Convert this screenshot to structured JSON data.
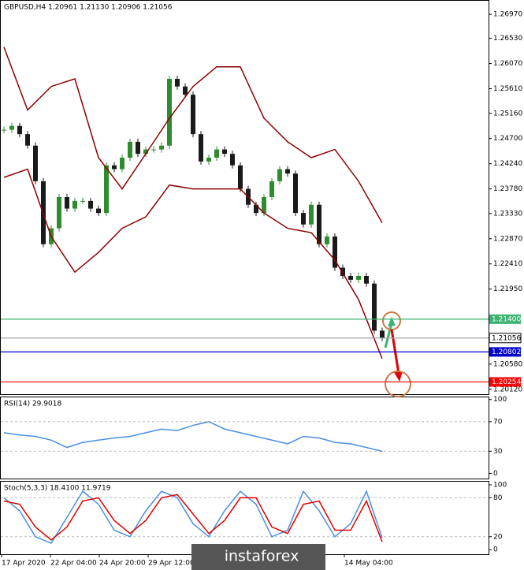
{
  "chart_data": [
    {
      "type": "candlestick",
      "title": "GBPUSD,H4  1.20961 1.21130 1.20906 1.21056",
      "closes": [
        1.2486,
        1.2493,
        1.2478,
        1.2457,
        1.2392,
        1.2277,
        1.2306,
        1.2363,
        1.2342,
        1.2356,
        1.2356,
        1.2342,
        1.2334,
        1.2421,
        1.2414,
        1.2435,
        1.2464,
        1.2442,
        1.245,
        1.245,
        1.2457,
        1.2579,
        1.2565,
        1.255,
        1.2478,
        1.2428,
        1.2435,
        1.245,
        1.2442,
        1.2421,
        1.2378,
        1.2349,
        1.2334,
        1.2363,
        1.2392,
        1.2414,
        1.2406,
        1.2334,
        1.2313,
        1.2349,
        1.2277,
        1.2291,
        1.2234,
        1.2219,
        1.2212,
        1.2219,
        1.2205,
        1.2119,
        1.21056
      ],
      "up_color": "#2e8b2e",
      "down_color": "#1a1a1a",
      "series": [
        {
          "color": "#8b0000",
          "values": [
            1.2637,
            1.2522,
            1.2565,
            1.2579,
            1.2435,
            1.2378,
            1.2442,
            1.2507,
            1.2565,
            1.2601,
            1.2601,
            1.2507,
            1.2464,
            1.2435,
            1.245,
            1.2392,
            1.2316
          ]
        },
        {
          "color": "#8b0000",
          "values": [
            1.2399,
            1.2414,
            1.2291,
            1.2226,
            1.2262,
            1.2306,
            1.2327,
            1.2385,
            1.2378,
            1.2378,
            1.2378,
            1.2334,
            1.2306,
            1.2298,
            1.2248,
            1.2176,
            1.2068
          ]
        }
      ],
      "ylim": [
        1.2003,
        1.2723
      ],
      "yticks": [
        {
          "value": 1.2697,
          "label": "1.26970"
        },
        {
          "value": 1.2653,
          "label": "1.26530"
        },
        {
          "value": 1.2607,
          "label": "1.26070"
        },
        {
          "value": 1.2561,
          "label": "1.25610"
        },
        {
          "value": 1.2516,
          "label": "1.25160"
        },
        {
          "value": 1.247,
          "label": "1.24700"
        },
        {
          "value": 1.2424,
          "label": "1.24240"
        },
        {
          "value": 1.2378,
          "label": "1.23780"
        },
        {
          "value": 1.2333,
          "label": "1.23330"
        },
        {
          "value": 1.2287,
          "label": "1.22870"
        },
        {
          "value": 1.2241,
          "label": "1.22410"
        },
        {
          "value": 1.2195,
          "label": "1.21950"
        },
        {
          "value": 1.2058,
          "label": "1.20580"
        },
        {
          "value": 1.2012,
          "label": "1.20120"
        }
      ],
      "levels": [
        {
          "value": 1.214,
          "label": "1.21400",
          "color": "#3cb371"
        },
        {
          "value": 1.21056,
          "label": "1.21056",
          "color": "#a0a0a0"
        },
        {
          "value": 1.20802,
          "label": "1.20802",
          "color": "#0000cd"
        },
        {
          "value": 1.20254,
          "label": "1.20254",
          "color": "#ff0000"
        }
      ],
      "x_labels": [
        "17 Apr 2020",
        "22 Apr 04:00",
        "24 Apr 20:00",
        "29 Apr 12:00",
        "14 May 04:00"
      ]
    },
    {
      "type": "line",
      "title": "RSI(14) 29.9018",
      "series": [
        {
          "color": "#4a90e2",
          "values": [
            55,
            52,
            50,
            45,
            35,
            42,
            45,
            48,
            50,
            55,
            60,
            58,
            65,
            70,
            60,
            55,
            50,
            45,
            40,
            50,
            48,
            42,
            40,
            35,
            29.9018
          ]
        }
      ],
      "ylim": [
        -7,
        104
      ],
      "yticks": [
        100,
        70,
        30,
        0
      ]
    },
    {
      "type": "line",
      "title": "Stoch(5,3,3) 18.4100 11.9719",
      "series": [
        {
          "color": "#4a90e2",
          "values": [
            80,
            60,
            20,
            10,
            50,
            90,
            70,
            30,
            20,
            60,
            90,
            80,
            40,
            20,
            60,
            90,
            70,
            20,
            30,
            90,
            60,
            20,
            40,
            90,
            18.41
          ]
        },
        {
          "color": "#e00000",
          "values": [
            75,
            70,
            35,
            15,
            35,
            75,
            80,
            45,
            25,
            45,
            80,
            85,
            55,
            25,
            45,
            80,
            80,
            35,
            25,
            70,
            75,
            30,
            30,
            75,
            11.9719
          ]
        }
      ],
      "ylim": [
        -7,
        106
      ],
      "yticks": [
        100,
        80,
        20,
        0
      ]
    }
  ],
  "watermark": "instaforex"
}
